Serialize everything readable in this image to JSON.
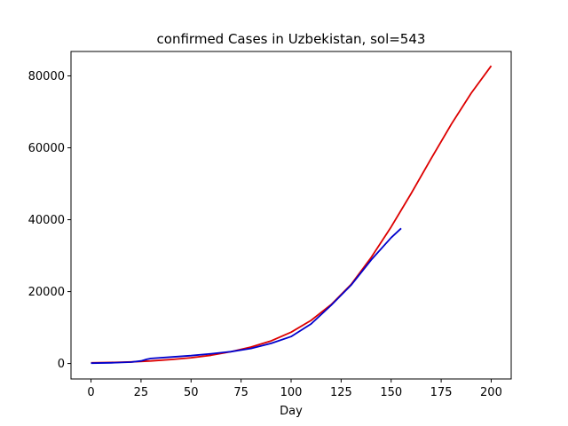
{
  "chart_data": {
    "type": "line",
    "title": "confirmed Cases in Uzbekistan, sol=543",
    "xlabel": "Day",
    "ylabel": "",
    "xlim": [
      -10,
      210
    ],
    "ylim": [
      -4300,
      86800
    ],
    "xticks": [
      0,
      25,
      50,
      75,
      100,
      125,
      150,
      175,
      200
    ],
    "yticks": [
      0,
      20000,
      40000,
      60000,
      80000
    ],
    "grid": false,
    "legend": "none",
    "series": [
      {
        "color": "#dd0000",
        "x": [
          0,
          10,
          20,
          30,
          40,
          50,
          60,
          70,
          80,
          90,
          100,
          110,
          120,
          130,
          140,
          150,
          160,
          170,
          180,
          190,
          200
        ],
        "y": [
          200,
          300,
          450,
          700,
          1100,
          1600,
          2300,
          3300,
          4600,
          6300,
          8700,
          12000,
          16400,
          22000,
          29500,
          38000,
          47300,
          57000,
          66500,
          75200,
          82800
        ]
      },
      {
        "color": "#0000cc",
        "x": [
          0,
          10,
          20,
          25,
          28,
          30,
          40,
          50,
          60,
          70,
          80,
          90,
          100,
          110,
          120,
          130,
          140,
          150,
          155
        ],
        "y": [
          100,
          200,
          400,
          700,
          1200,
          1400,
          1800,
          2200,
          2700,
          3300,
          4200,
          5600,
          7500,
          11000,
          16200,
          21800,
          28800,
          35000,
          37600
        ]
      }
    ]
  }
}
